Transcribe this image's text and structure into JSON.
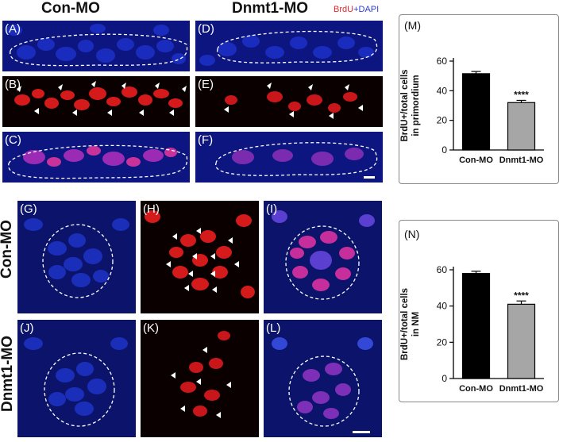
{
  "headers": {
    "con_mo_top": "Con-MO",
    "dnmt1_mo_top": "Dnmt1-MO",
    "con_mo_side": "Con-MO",
    "dnmt1_mo_side": "Dnmt1-MO"
  },
  "legend": {
    "brdu": "BrdU",
    "plus": "+",
    "dapi": "DAPI"
  },
  "legend_colors": {
    "brdu": "#e8252b",
    "dapi": "#2b3ed9"
  },
  "panels": {
    "A": "(A)",
    "B": "(B)",
    "C": "(C)",
    "D": "(D)",
    "E": "(E)",
    "F": "(F)",
    "G": "(G)",
    "H": "(H)",
    "I": "(I)",
    "J": "(J)",
    "K": "(K)",
    "L": "(L)"
  },
  "chart_data": [
    {
      "panel": "(M)",
      "type": "bar",
      "categories": [
        "Con-MO",
        "Dnmt1-MO"
      ],
      "values": [
        51.5,
        32
      ],
      "errors": [
        1.5,
        1.5
      ],
      "colors": [
        "#000000",
        "#a6a6a6"
      ],
      "significance": [
        "",
        "****"
      ],
      "ylabel": "BrdU+/total cells in primordium",
      "ylim": [
        0,
        60
      ],
      "yticks": [
        0,
        20,
        40,
        60
      ]
    },
    {
      "panel": "(N)",
      "type": "bar",
      "categories": [
        "Con-MO",
        "Dnmt1-MO"
      ],
      "values": [
        58,
        41
      ],
      "errors": [
        1.2,
        1.8
      ],
      "colors": [
        "#000000",
        "#a6a6a6"
      ],
      "significance": [
        "",
        "****"
      ],
      "ylabel": "BrdU+/total cells in NM",
      "ylim": [
        0,
        60
      ],
      "yticks": [
        0,
        20,
        40,
        60
      ]
    }
  ]
}
